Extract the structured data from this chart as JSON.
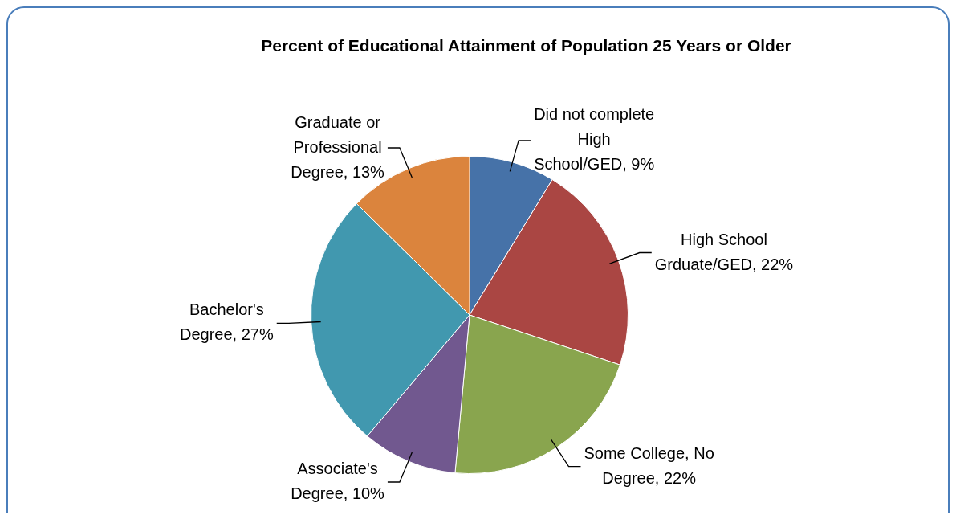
{
  "chart_data": {
    "type": "pie",
    "title": "Percent of Educational Attainment of Population 25 Years or Older",
    "categories": [
      "Did not complete High School/GED",
      "High School Grduate/GED",
      "Some College, No Degree",
      "Associate's Degree",
      "Bachelor's Degree",
      "Graduate or Professional Degree"
    ],
    "values": [
      9,
      22,
      22,
      10,
      27,
      13
    ],
    "value_labels": [
      "9%",
      "22%",
      "22%",
      "10%",
      "27%",
      "13%"
    ],
    "colors": [
      "#4672a8",
      "#aa4643",
      "#89a54e",
      "#71588f",
      "#4198af",
      "#db843d"
    ],
    "legend": false
  }
}
